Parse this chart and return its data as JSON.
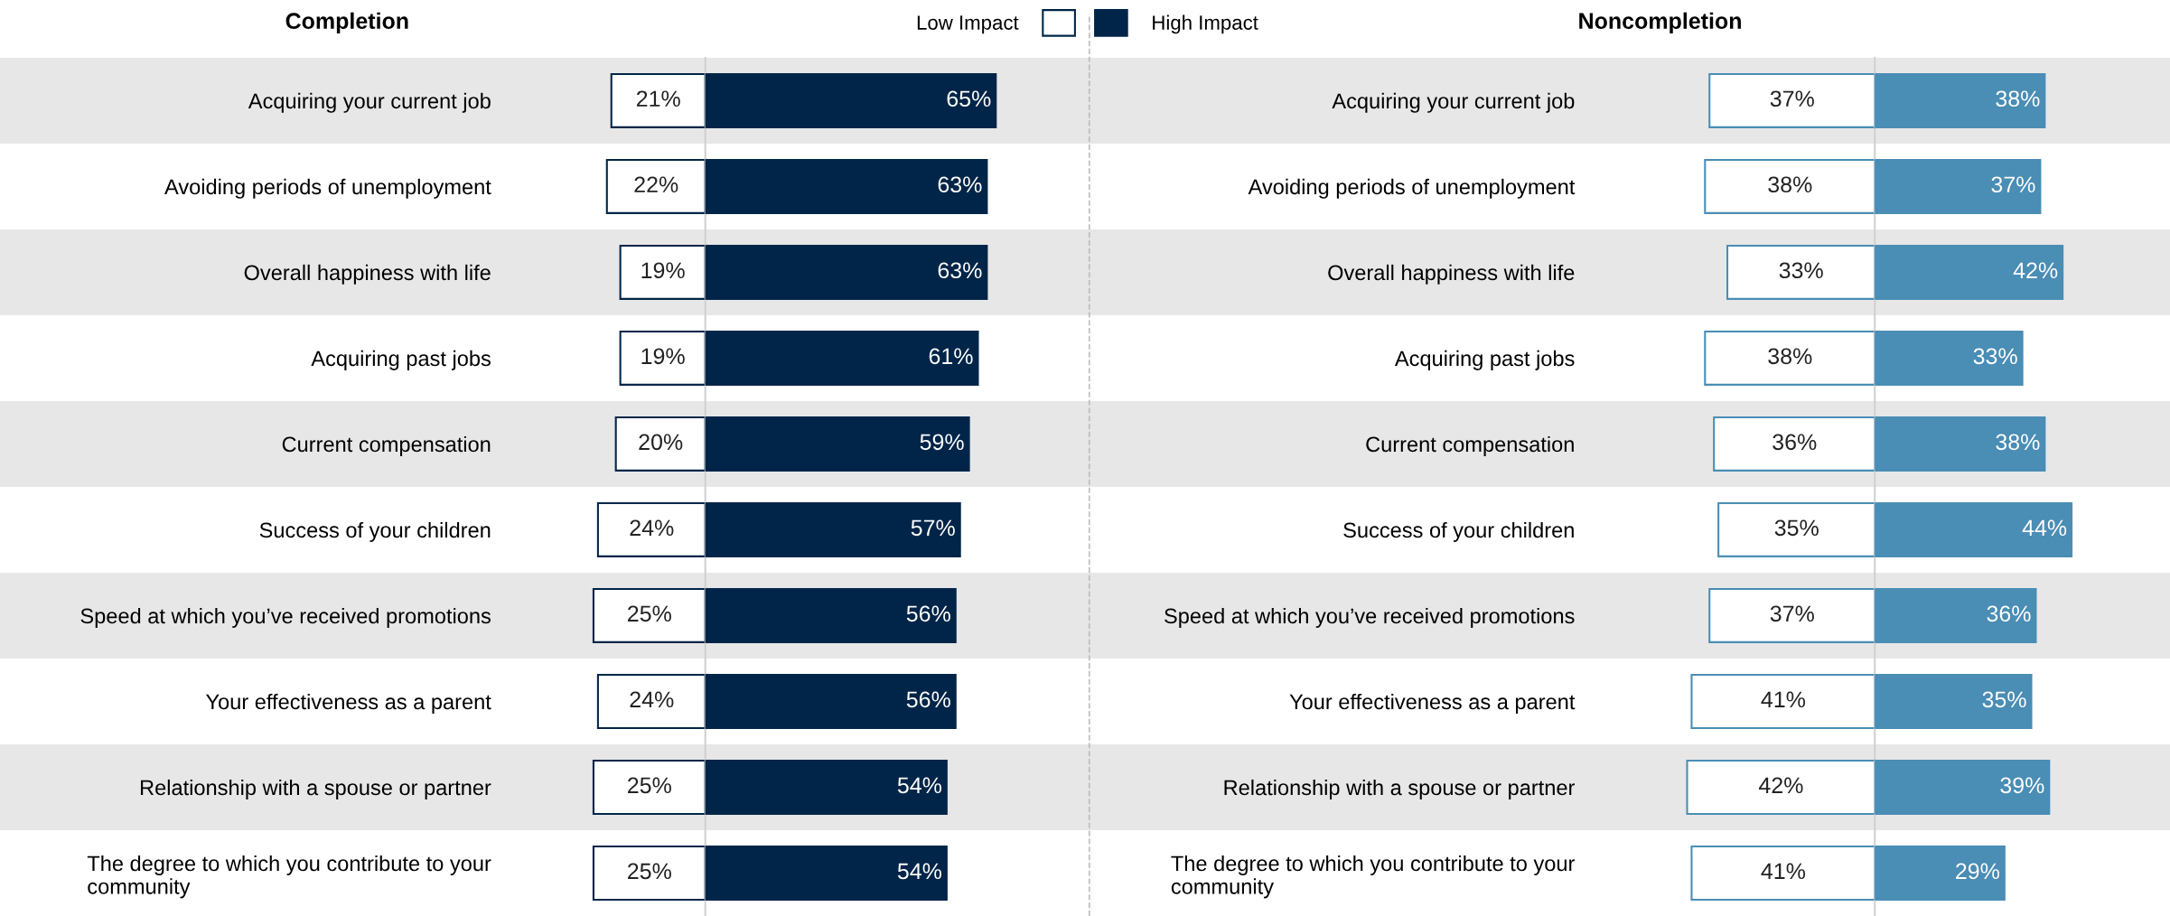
{
  "chart_data": [
    {
      "type": "bar",
      "orientation": "horizontal",
      "title": "Completion",
      "legend": "top",
      "bands": [
        {
          "axis": "y",
          "from": "Acquiring your current job",
          "to": "Acquiring your current job",
          "color": "#e7e7e7"
        },
        {
          "axis": "y",
          "from": "Overall happiness with life",
          "to": "Overall happiness with life",
          "color": "#e7e7e7"
        },
        {
          "axis": "y",
          "from": "Current compensation",
          "to": "Current compensation",
          "color": "#e7e7e7"
        },
        {
          "axis": "y",
          "from": "Speed at which you’ve received promotions",
          "to": "Speed at which you’ve received promotions",
          "color": "#e7e7e7"
        },
        {
          "axis": "y",
          "from": "Relationship with a spouse or partner",
          "to": "Relationship with a spouse or partner",
          "color": "#e7e7e7"
        }
      ],
      "categories": [
        "Acquiring your current job",
        "Avoiding periods of unemployment",
        "Overall happiness with life",
        "Acquiring past jobs",
        "Current compensation",
        "Success of your children",
        "Speed at which you’ve received promotions",
        "Your effectiveness as a parent",
        "Relationship with a spouse or partner",
        "The degree to which you contribute to your community"
      ],
      "series": [
        {
          "name": "Low Impact",
          "color": "#ffffff",
          "values": [
            21,
            22,
            19,
            19,
            20,
            24,
            25,
            24,
            25,
            25
          ],
          "value_labels": [
            "21%",
            "22%",
            "19%",
            "19%",
            "20%",
            "24%",
            "25%",
            "24%",
            "25%",
            "25%"
          ]
        }
      ]
    },
    {
      "type": "bar",
      "orientation": "horizontal",
      "legend": "top",
      "categories": [
        null,
        null,
        null,
        null,
        null,
        null,
        null,
        null,
        null,
        null
      ],
      "series": [
        {
          "name": "High Impact",
          "color": "#002548",
          "values": [
            65,
            63,
            63,
            61,
            59,
            57,
            56,
            56,
            54,
            54
          ],
          "value_labels": [
            "65%",
            "63%",
            "63%",
            "61%",
            "59%",
            "57%",
            "56%",
            "56%",
            "54%",
            "54%"
          ]
        }
      ]
    },
    {
      "type": "bar",
      "orientation": "horizontal",
      "title": "Noncompletion",
      "categories": [
        "Acquiring your current job",
        "Avoiding periods of unemployment",
        "Overall happiness with life",
        "Acquiring past jobs",
        "Current compensation",
        "Success of your children",
        "Speed at which you’ve received promotions",
        "Your effectiveness as a parent",
        "Relationship with a spouse or partner",
        "The degree to which you contribute to your community"
      ],
      "series": [
        {
          "color": "#ffffff",
          "values": [
            37,
            38,
            33,
            38,
            36,
            35,
            37,
            41,
            42,
            41
          ],
          "value_labels": [
            "37%",
            "38%",
            "33%",
            "38%",
            "36%",
            "35%",
            "37%",
            "41%",
            "42%",
            "41%"
          ]
        }
      ]
    },
    {
      "type": "bar",
      "orientation": "horizontal",
      "categories": [
        null,
        null,
        null,
        null,
        null,
        null,
        null,
        null,
        null,
        null
      ],
      "series": [
        {
          "color": "#4a8db5",
          "values": [
            38,
            37,
            42,
            33,
            38,
            44,
            36,
            35,
            39,
            29
          ],
          "value_labels": [
            "38%",
            "37%",
            "42%",
            "33%",
            "38%",
            "44%",
            "36%",
            "35%",
            "39%",
            "29%"
          ]
        }
      ]
    }
  ]
}
